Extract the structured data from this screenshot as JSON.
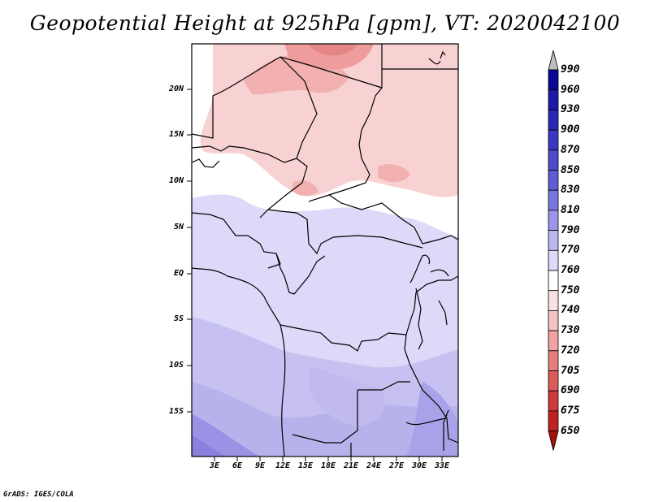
{
  "title": "Geopotential Height at 925hPa [gpm], VT: 2020042100",
  "credit": "GrADS: IGES/COLA",
  "lat_labels": [
    "20N",
    "15N",
    "10N",
    "5N",
    "EQ",
    "5S",
    "10S",
    "15S"
  ],
  "lon_labels": [
    "3E",
    "6E",
    "9E",
    "12E",
    "15E",
    "18E",
    "21E",
    "24E",
    "27E",
    "30E",
    "33E"
  ],
  "colorbar": {
    "labels": [
      "990",
      "960",
      "930",
      "900",
      "870",
      "850",
      "830",
      "810",
      "790",
      "770",
      "760",
      "750",
      "740",
      "730",
      "720",
      "705",
      "690",
      "675",
      "650"
    ],
    "colors": [
      "#bdbdbd",
      "#0a0896",
      "#1c19a8",
      "#2a28b4",
      "#3a38c2",
      "#4d4acc",
      "#605cd6",
      "#7a75e0",
      "#9b96ea",
      "#bcb8f2",
      "#dcdaf8",
      "#ffffff",
      "#fbe2e2",
      "#f6c3c3",
      "#f0a3a3",
      "#e67e7e",
      "#db5a5a",
      "#cf3a3a",
      "#c02222",
      "#a81010"
    ]
  },
  "colors": {
    "north_pink": "#f8d2d2",
    "core_pink": "#ee9c9c",
    "lavender": "#d8d8f4",
    "south_purple": "#b8b2ec",
    "deep_purple": "#9a92e4"
  }
}
